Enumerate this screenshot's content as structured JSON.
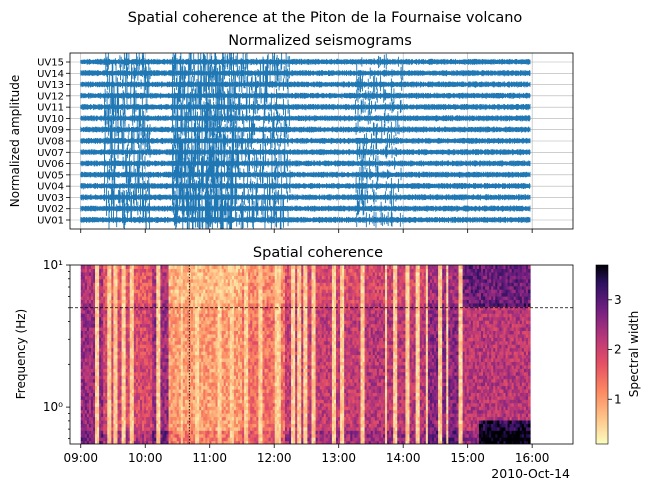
{
  "figure": {
    "suptitle": "Spatial coherence at the Piton de la Fournaise volcano",
    "date_label": "2010-Oct-14"
  },
  "chart_data": [
    {
      "type": "line",
      "title": "Normalized seismograms",
      "ylabel": "Normalized amplitude",
      "xlabel": "",
      "xlim": [
        "08:50",
        "16:38"
      ],
      "grid": true,
      "color": "#1f77b4",
      "trace_span": [
        "09:00",
        "15:58"
      ],
      "stations": [
        "UV01",
        "UV02",
        "UV03",
        "UV04",
        "UV05",
        "UV06",
        "UV07",
        "UV08",
        "UV09",
        "UV10",
        "UV11",
        "UV12",
        "UV13",
        "UV14",
        "UV15"
      ],
      "activity_windows": [
        {
          "start": "09:22",
          "end": "10:05",
          "level": 0.7
        },
        {
          "start": "10:25",
          "end": "11:25",
          "level": 1.0
        },
        {
          "start": "11:25",
          "end": "12:15",
          "level": 0.6
        },
        {
          "start": "13:15",
          "end": "14:00",
          "level": 0.4
        }
      ],
      "xticks": []
    },
    {
      "type": "heatmap",
      "title": "Spatial coherence",
      "ylabel": "Frequency (Hz)",
      "xlabel": "",
      "yscale": "log",
      "ylim": [
        0.55,
        10
      ],
      "xlim": [
        "08:50",
        "16:38"
      ],
      "data_span": [
        "09:00",
        "15:58"
      ],
      "yticks": [
        {
          "value": 1,
          "label": "10⁰"
        },
        {
          "value": 10,
          "label": "10¹"
        }
      ],
      "xticks": [
        "09:00",
        "10:00",
        "11:00",
        "12:00",
        "13:00",
        "14:00",
        "15:00",
        "16:00"
      ],
      "hline": {
        "freq": 5,
        "style": "dashed"
      },
      "vline": {
        "time": "10:41",
        "style": "dotted"
      },
      "colormap": "magma_r",
      "colorbar": {
        "label": "Spectral width",
        "min": 0.1,
        "max": 3.7,
        "ticks": [
          1,
          2,
          3
        ]
      },
      "high_coherence_bands": [
        {
          "start": "10:20",
          "end": "11:30",
          "value": 1.0
        },
        {
          "start": "11:30",
          "end": "12:10",
          "value": 1.4
        },
        {
          "start": "09:20",
          "end": "10:05",
          "value": 1.9
        },
        {
          "start": "12:10",
          "end": "13:20",
          "value": 2.1
        },
        {
          "start": "13:20",
          "end": "14:20",
          "value": 2.2
        },
        {
          "start": "14:20",
          "end": "14:55",
          "value": 2.6
        },
        {
          "start": "14:55",
          "end": "15:58",
          "value": 2.2
        }
      ],
      "vertical_streaks": [
        "09:14",
        "09:26",
        "09:31",
        "09:39",
        "09:47",
        "10:12",
        "10:33",
        "10:47",
        "11:08",
        "11:19",
        "11:33",
        "11:47",
        "12:02",
        "12:04",
        "12:16",
        "12:22",
        "12:28",
        "12:35",
        "12:55",
        "13:02",
        "13:22",
        "13:43",
        "13:51",
        "14:03",
        "14:13",
        "14:21",
        "14:33",
        "14:40",
        "14:52"
      ]
    }
  ]
}
